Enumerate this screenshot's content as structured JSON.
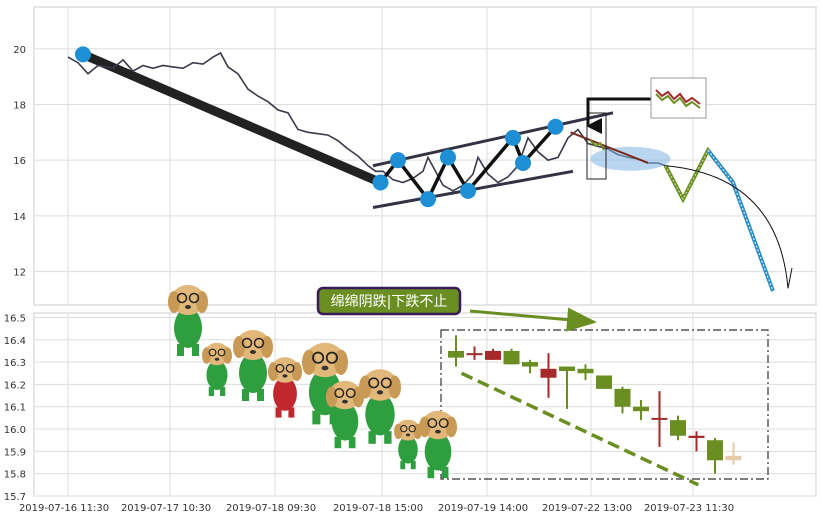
{
  "chart_data": [
    {
      "type": "line",
      "panel": "top",
      "ylim": [
        10.8,
        21.5
      ],
      "yticks": [
        12,
        14,
        16,
        18,
        20
      ],
      "grid": true,
      "series": [
        {
          "values": [
            [
              0.0,
              19.7
            ],
            [
              0.2,
              19.5
            ],
            [
              0.4,
              19.1
            ],
            [
              0.6,
              19.4
            ],
            [
              0.9,
              19.3
            ],
            [
              1.1,
              19.6
            ],
            [
              1.3,
              19.2
            ],
            [
              1.5,
              19.4
            ],
            [
              1.7,
              19.3
            ],
            [
              1.9,
              19.4
            ],
            [
              2.1,
              19.35
            ],
            [
              2.3,
              19.3
            ],
            [
              2.5,
              19.5
            ],
            [
              2.7,
              19.45
            ],
            [
              2.9,
              19.7
            ],
            [
              3.05,
              19.85
            ],
            [
              3.2,
              19.35
            ],
            [
              3.4,
              19.1
            ],
            [
              3.6,
              18.55
            ],
            [
              3.8,
              18.3
            ],
            [
              4.0,
              18.1
            ],
            [
              4.2,
              17.8
            ],
            [
              4.4,
              17.7
            ],
            [
              4.6,
              17.1
            ],
            [
              4.8,
              17.0
            ],
            [
              5.0,
              16.95
            ],
            [
              5.2,
              16.9
            ],
            [
              5.4,
              16.7
            ],
            [
              5.6,
              16.4
            ],
            [
              5.8,
              16.15
            ],
            [
              6.0,
              15.8
            ],
            [
              6.15,
              15.6
            ],
            [
              6.3,
              15.6
            ],
            [
              6.5,
              15.3
            ],
            [
              6.7,
              15.2
            ],
            [
              6.9,
              15.35
            ],
            [
              7.1,
              15.6
            ],
            [
              7.2,
              16.1
            ],
            [
              7.35,
              15.6
            ],
            [
              7.5,
              15.1
            ],
            [
              7.7,
              14.9
            ],
            [
              7.9,
              15.1
            ],
            [
              8.1,
              15.5
            ],
            [
              8.2,
              16.1
            ],
            [
              8.4,
              15.5
            ],
            [
              8.6,
              15.2
            ],
            [
              8.8,
              15.4
            ],
            [
              9.0,
              15.8
            ],
            [
              9.1,
              16.3
            ],
            [
              9.2,
              16.8
            ],
            [
              9.4,
              16.3
            ],
            [
              9.6,
              16.0
            ],
            [
              9.8,
              16.1
            ],
            [
              10.0,
              16.8
            ],
            [
              10.2,
              17.1
            ],
            [
              10.4,
              16.6
            ],
            [
              10.6,
              16.5
            ],
            [
              10.8,
              16.4
            ],
            [
              11.0,
              16.2
            ],
            [
              11.2,
              16.1
            ],
            [
              11.4,
              16.05
            ],
            [
              11.6,
              15.9
            ],
            [
              11.8,
              15.9
            ],
            [
              11.95,
              15.8
            ]
          ]
        }
      ],
      "annotations": {
        "downtrend_start": [
          0.3,
          19.8
        ],
        "downtrend_end": [
          6.25,
          15.2
        ],
        "channel_lower": [
          [
            6.1,
            14.3
          ],
          [
            10.1,
            15.6
          ]
        ],
        "channel_upper": [
          [
            6.1,
            15.8
          ],
          [
            10.9,
            17.7
          ]
        ],
        "zigzag_points": [
          [
            6.25,
            15.2
          ],
          [
            6.6,
            16.0
          ],
          [
            7.2,
            14.6
          ],
          [
            7.6,
            16.1
          ],
          [
            8.0,
            14.9
          ],
          [
            8.9,
            16.8
          ],
          [
            9.1,
            15.9
          ],
          [
            9.75,
            17.2
          ]
        ],
        "projection_green": [
          [
            11.95,
            15.8
          ],
          [
            12.3,
            14.6
          ],
          [
            12.8,
            16.35
          ],
          [
            13.3,
            15.2
          ]
        ],
        "projection_blue": [
          [
            12.8,
            16.35
          ],
          [
            13.3,
            15.2
          ],
          [
            14.1,
            11.3
          ]
        ],
        "arc_end": [
          14.4,
          11.4
        ]
      }
    },
    {
      "type": "candlestick",
      "panel": "bottom",
      "ylim": [
        15.7,
        16.52
      ],
      "yticks": [
        15.7,
        15.8,
        15.9,
        16.0,
        16.1,
        16.2,
        16.3,
        16.4,
        16.5
      ],
      "grid": true,
      "xticks": [
        "2019-07-16 11:30",
        "2019-07-17 10:30",
        "2019-07-18 09:30",
        "2019-07-18 15:00",
        "2019-07-19 14:00",
        "2019-07-22 13:00",
        "2019-07-23 11:30"
      ],
      "callout": "绵绵阴跌|下跌不止",
      "candles": [
        {
          "open": 16.35,
          "close": 16.32,
          "high": 16.42,
          "low": 16.28,
          "color": "#6b8e23"
        },
        {
          "open": 16.34,
          "close": 16.34,
          "high": 16.37,
          "low": 16.31,
          "color": "#a52a2a"
        },
        {
          "open": 16.31,
          "close": 16.35,
          "high": 16.36,
          "low": 16.31,
          "color": "#a52a2a"
        },
        {
          "open": 16.35,
          "close": 16.29,
          "high": 16.36,
          "low": 16.29,
          "color": "#6b8e23"
        },
        {
          "open": 16.3,
          "close": 16.28,
          "high": 16.31,
          "low": 16.25,
          "color": "#6b8e23"
        },
        {
          "open": 16.23,
          "close": 16.27,
          "high": 16.34,
          "low": 16.14,
          "color": "#a52a2a"
        },
        {
          "open": 16.28,
          "close": 16.26,
          "high": 16.28,
          "low": 16.09,
          "color": "#6b8e23"
        },
        {
          "open": 16.27,
          "close": 16.25,
          "high": 16.29,
          "low": 16.22,
          "color": "#6b8e23"
        },
        {
          "open": 16.24,
          "close": 16.18,
          "high": 16.24,
          "low": 16.18,
          "color": "#6b8e23"
        },
        {
          "open": 16.18,
          "close": 16.1,
          "high": 16.19,
          "low": 16.07,
          "color": "#6b8e23"
        },
        {
          "open": 16.1,
          "close": 16.08,
          "high": 16.13,
          "low": 16.04,
          "color": "#6b8e23"
        },
        {
          "open": 16.05,
          "close": 16.05,
          "high": 16.17,
          "low": 15.92,
          "color": "#a52a2a"
        },
        {
          "open": 16.04,
          "close": 15.97,
          "high": 16.06,
          "low": 15.95,
          "color": "#6b8e23"
        },
        {
          "open": 15.96,
          "close": 15.97,
          "high": 15.99,
          "low": 15.9,
          "color": "#a52a2a"
        },
        {
          "open": 15.95,
          "close": 15.86,
          "high": 15.96,
          "low": 15.8,
          "color": "#6b8e23"
        },
        {
          "open": 15.86,
          "close": 15.88,
          "high": 15.94,
          "low": 15.84,
          "color": "#e8c9a8"
        }
      ],
      "annotations": {
        "trend_line": [
          [
            0.3,
            16.25
          ],
          [
            13.1,
            15.75
          ]
        ]
      }
    }
  ]
}
